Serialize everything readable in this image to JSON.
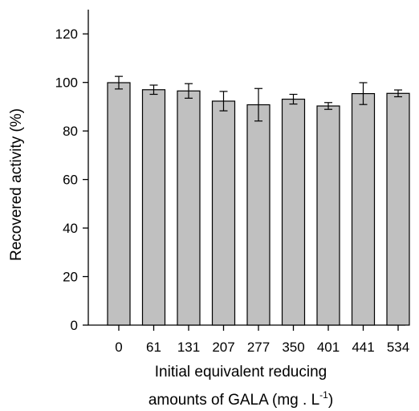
{
  "chart_data": {
    "type": "bar",
    "title": "",
    "ylabel": "Recovered activity (%)",
    "xlabel_line1": "Initial equivalent reducing",
    "xlabel_line2_main": "amounts of GALA (mg . L",
    "xlabel_line2_sup": "-1",
    "xlabel_line2_end": ")",
    "categories": [
      "0",
      "61",
      "131",
      "207",
      "277",
      "350",
      "401",
      "441",
      "534"
    ],
    "values": [
      99.9,
      97.0,
      96.5,
      92.3,
      90.8,
      93.1,
      90.3,
      95.4,
      95.5
    ],
    "error": [
      2.6,
      1.9,
      3.0,
      4.0,
      6.7,
      2.0,
      1.4,
      4.5,
      1.4
    ],
    "ylim": [
      0,
      130
    ],
    "yticks": [
      0,
      20,
      40,
      60,
      80,
      100,
      120
    ],
    "grid": false,
    "legend": "none",
    "bar_color": "#c0c0c0",
    "edge_color": "#000000"
  }
}
